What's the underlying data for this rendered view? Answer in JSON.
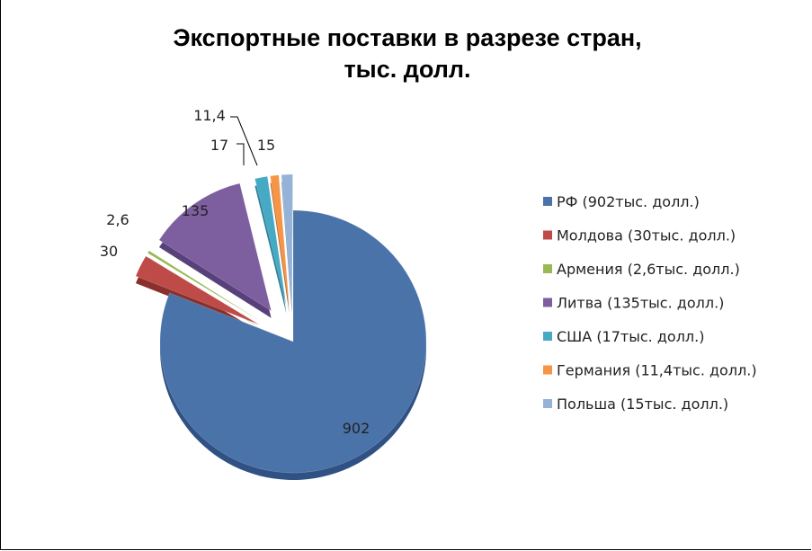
{
  "chart_data": {
    "type": "pie",
    "title_line1": "Экспортные поставки в разрезе стран,",
    "title_line2": "тыс. долл.",
    "slices": [
      {
        "label": "РФ (902тыс. долл.)",
        "value": 902,
        "value_label": "902",
        "color": "#4a73aa",
        "side": "#2f5183"
      },
      {
        "label": "Молдова (30тыс. долл.)",
        "value": 30,
        "value_label": "30",
        "color": "#be4b48",
        "side": "#8a2f2c"
      },
      {
        "label": "Армения (2,6тыс. долл.)",
        "value": 2.6,
        "value_label": "2,6",
        "color": "#98b954",
        "side": "#6c8a33"
      },
      {
        "label": "Литва (135тыс. долл.)",
        "value": 135,
        "value_label": "135",
        "color": "#7d5fa0",
        "side": "#58407a"
      },
      {
        "label": "США (17тыс. долл.)",
        "value": 17,
        "value_label": "17",
        "color": "#46aac5",
        "side": "#2d7f96"
      },
      {
        "label": "Германия (11,4тыс. долл.)",
        "value": 11.4,
        "value_label": "11,4",
        "color": "#f59545",
        "side": "#c2682a"
      },
      {
        "label": "Польша (15тыс. долл.)",
        "value": 15,
        "value_label": "15",
        "color": "#95b3d7",
        "side": "#6e8db3"
      }
    ],
    "legend_position": "right",
    "exploded": true
  }
}
